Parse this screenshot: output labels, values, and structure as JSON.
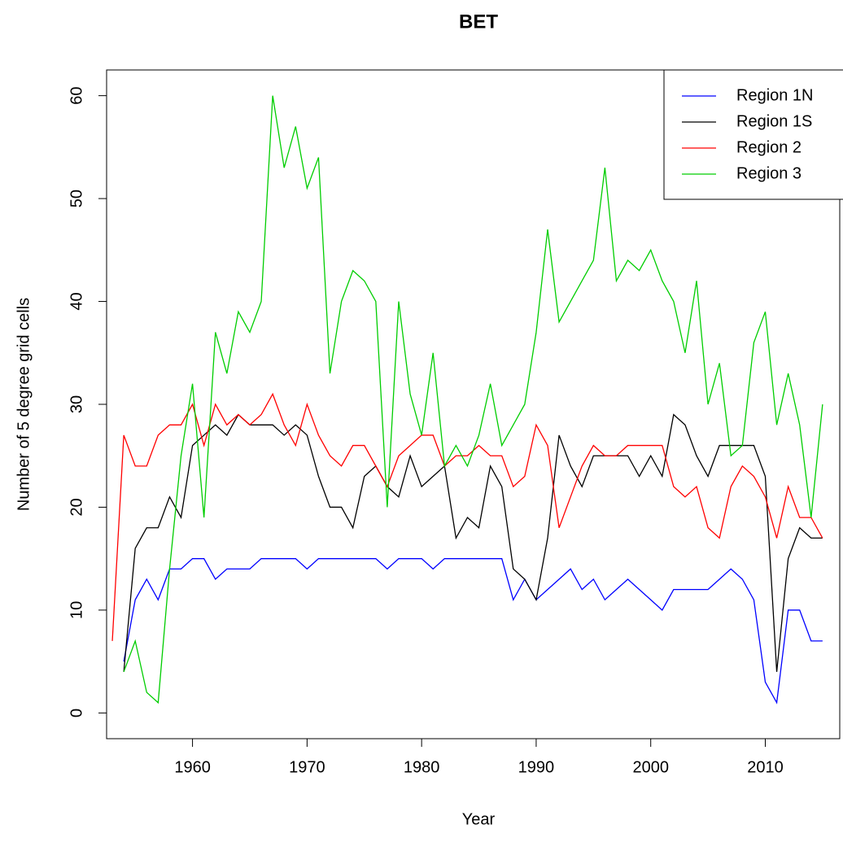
{
  "chart_data": {
    "type": "line",
    "title": "BET",
    "x_label": "Year",
    "y_label": "Number of 5 degree grid cells",
    "x": [
      1953,
      1954,
      1955,
      1956,
      1957,
      1958,
      1959,
      1960,
      1961,
      1962,
      1963,
      1964,
      1965,
      1966,
      1967,
      1968,
      1969,
      1970,
      1971,
      1972,
      1973,
      1974,
      1975,
      1976,
      1977,
      1978,
      1979,
      1980,
      1981,
      1982,
      1983,
      1984,
      1985,
      1986,
      1987,
      1988,
      1989,
      1990,
      1991,
      1992,
      1993,
      1994,
      1995,
      1996,
      1997,
      1998,
      1999,
      2000,
      2001,
      2002,
      2003,
      2004,
      2005,
      2006,
      2007,
      2008,
      2009,
      2010,
      2011,
      2012,
      2013,
      2014,
      2015
    ],
    "series": [
      {
        "name": "Region 1N",
        "color": "#0000ff",
        "values": [
          null,
          5,
          11,
          13,
          11,
          14,
          14,
          15,
          15,
          13,
          14,
          14,
          14,
          15,
          15,
          15,
          15,
          14,
          15,
          15,
          15,
          15,
          15,
          15,
          14,
          15,
          15,
          15,
          14,
          15,
          15,
          15,
          15,
          15,
          15,
          11,
          13,
          11,
          12,
          13,
          14,
          12,
          13,
          11,
          12,
          13,
          12,
          11,
          10,
          12,
          12,
          12,
          12,
          13,
          14,
          13,
          11,
          3,
          1,
          10,
          10,
          7,
          7
        ]
      },
      {
        "name": "Region 1S",
        "color": "#000000",
        "values": [
          null,
          4,
          16,
          18,
          18,
          21,
          19,
          26,
          27,
          28,
          27,
          29,
          28,
          28,
          28,
          27,
          28,
          27,
          23,
          20,
          20,
          18,
          23,
          24,
          22,
          21,
          25,
          22,
          23,
          24,
          17,
          19,
          18,
          24,
          22,
          14,
          13,
          11,
          17,
          27,
          24,
          22,
          25,
          25,
          25,
          25,
          23,
          25,
          23,
          29,
          28,
          25,
          23,
          26,
          26,
          26,
          26,
          23,
          4,
          15,
          18,
          17,
          17
        ]
      },
      {
        "name": "Region 2",
        "color": "#ff0000",
        "values": [
          7,
          27,
          24,
          24,
          27,
          28,
          28,
          30,
          26,
          30,
          28,
          29,
          28,
          29,
          31,
          28,
          26,
          30,
          27,
          25,
          24,
          26,
          26,
          24,
          22,
          25,
          26,
          27,
          27,
          24,
          25,
          25,
          26,
          25,
          25,
          22,
          23,
          28,
          26,
          18,
          21,
          24,
          26,
          25,
          25,
          26,
          26,
          26,
          26,
          22,
          21,
          22,
          18,
          17,
          22,
          24,
          23,
          21,
          17,
          22,
          19,
          19,
          17
        ]
      },
      {
        "name": "Region 3",
        "color": "#00cd00",
        "values": [
          null,
          4,
          7,
          2,
          1,
          14,
          25,
          32,
          19,
          37,
          33,
          39,
          37,
          40,
          60,
          53,
          57,
          51,
          54,
          33,
          40,
          43,
          42,
          40,
          20,
          40,
          31,
          27,
          35,
          24,
          26,
          24,
          27,
          32,
          26,
          28,
          30,
          37,
          47,
          38,
          40,
          42,
          44,
          53,
          42,
          44,
          43,
          45,
          42,
          40,
          35,
          42,
          30,
          34,
          25,
          26,
          36,
          39,
          28,
          33,
          28,
          19,
          30
        ]
      }
    ],
    "xlim": [
      1952.5,
      2016.5
    ],
    "xticks": [
      1960,
      1970,
      1980,
      1990,
      2000,
      2010
    ],
    "ylim": [
      -2.5,
      62.5
    ],
    "yticks": [
      0,
      10,
      20,
      30,
      40,
      50,
      60
    ],
    "legend": "top-right"
  }
}
